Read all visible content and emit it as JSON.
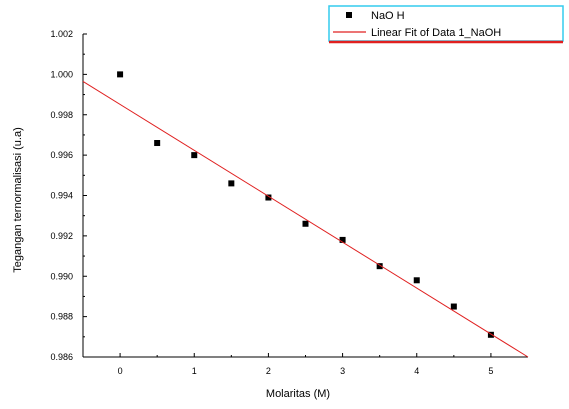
{
  "chart_data": {
    "type": "scatter",
    "xlabel": "Molaritas (M)",
    "ylabel": "Tegangan ternormalisasi (u.a)",
    "xlim": [
      -0.5,
      5.5
    ],
    "ylim": [
      0.986,
      1.002
    ],
    "x_ticks": [
      0,
      1,
      2,
      3,
      4,
      5
    ],
    "x_tick_labels": [
      "0",
      "1",
      "2",
      "3",
      "4",
      "5"
    ],
    "y_ticks": [
      0.986,
      0.988,
      0.99,
      0.992,
      0.994,
      0.996,
      0.998,
      1.0,
      1.002
    ],
    "y_tick_labels": [
      "0.986",
      "0.988",
      "0.990",
      "0.992",
      "0.994",
      "0.996",
      "0.998",
      "1.000",
      "1.002"
    ],
    "grid": false,
    "legend_position": "top-right",
    "series": [
      {
        "name": "NaO H",
        "kind": "scatter",
        "marker": "square",
        "color": "#000000",
        "x": [
          0,
          0.5,
          1.0,
          1.5,
          2.0,
          2.5,
          3.0,
          3.5,
          4.0,
          4.5,
          5.0
        ],
        "y": [
          1.0,
          0.9966,
          0.996,
          0.9946,
          0.9939,
          0.9926,
          0.9918,
          0.9905,
          0.9898,
          0.9885,
          0.9871
        ]
      },
      {
        "name": "Linear Fit of Data 1_NaOH",
        "kind": "line",
        "color": "#e02020",
        "x": [
          -0.5,
          5.5
        ],
        "y": [
          0.99965,
          0.986
        ]
      }
    ],
    "legend_border_color": "#33ccee"
  }
}
